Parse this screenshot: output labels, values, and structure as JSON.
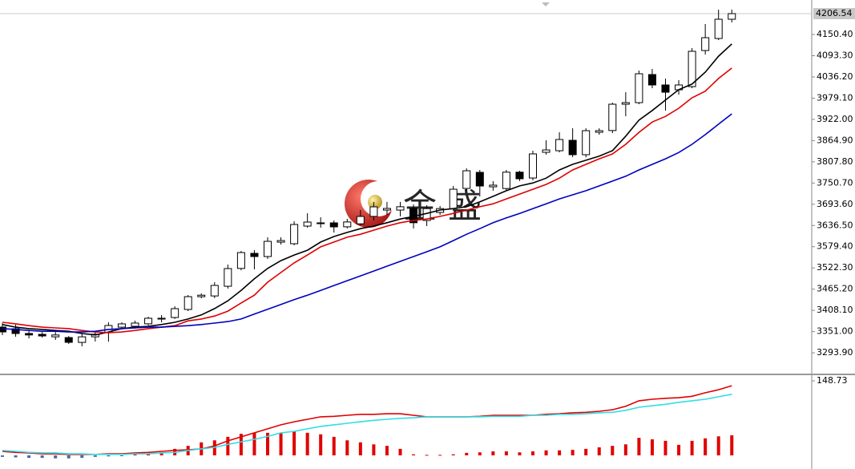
{
  "chart_data": [
    {
      "type": "candlestick",
      "watermark": "金盛",
      "categories": [
        null,
        null,
        null,
        null,
        null,
        null,
        null,
        null,
        null,
        null,
        null,
        null,
        null,
        null,
        null,
        null,
        null,
        null,
        null,
        null,
        null,
        null,
        null,
        null,
        null,
        null,
        null,
        null,
        null,
        null,
        null,
        null,
        null,
        null,
        null,
        null,
        null,
        null,
        null,
        null,
        null,
        null,
        null,
        null,
        null,
        null,
        null,
        null,
        null,
        null,
        null,
        null,
        null,
        null,
        null,
        null
      ],
      "open": [
        3363.1,
        3358.8,
        3346,
        3343.7,
        3337,
        3335,
        3322,
        3337,
        3348,
        3363,
        3365.3,
        3372,
        3384.7,
        3389,
        3410.6,
        3445,
        3447,
        3473,
        3521,
        3561.6,
        3553,
        3591.7,
        3587.5,
        3634.9,
        3641.4,
        3643.6,
        3633,
        3641,
        3661,
        3678,
        3678,
        3682.4,
        3650,
        3671.6,
        3682,
        3736.3,
        3779.5,
        3740.6,
        3736,
        3780,
        3764.3,
        3833.4,
        3837.7,
        3865.7,
        3827,
        3887.3,
        3892,
        3962.8,
        3967,
        4042.6,
        4014.6,
        4001.6,
        4010.2,
        4107.3,
        4139.7,
        4191.4
      ],
      "high": [
        3373.9,
        3369.6,
        3354.5,
        3350,
        3355,
        3339,
        3346,
        3350,
        3376.1,
        3376,
        3380.4,
        3391.2,
        3395.5,
        3419.2,
        3449.4,
        3453.7,
        3483.9,
        3531.4,
        3568,
        3570.2,
        3604.7,
        3604.7,
        3647.9,
        3669.4,
        3658.6,
        3650,
        3654.3,
        3678.1,
        3699.6,
        3700,
        3700,
        3693.2,
        3691,
        3689,
        3742.8,
        3790.2,
        3786,
        3755.7,
        3786,
        3783.8,
        3837.7,
        3865.7,
        3887.3,
        3898.1,
        3898,
        3898,
        3967.1,
        3995.1,
        4053.4,
        4057.7,
        4031.8,
        4027.5,
        4113.8,
        4178.5,
        4217.3,
        4217.3
      ],
      "low": [
        3341.6,
        3337.3,
        3332.9,
        3335.1,
        3328.6,
        3317.8,
        3311.4,
        3324.3,
        3324,
        3359,
        3359,
        3367.5,
        3376,
        3385,
        3406.3,
        3440.8,
        3441,
        3466.7,
        3516,
        3518.5,
        3546.5,
        3585.3,
        3583.2,
        3630.6,
        3630.6,
        3617.7,
        3628.5,
        3637,
        3650,
        3665,
        3661,
        3628.5,
        3635,
        3665,
        3676,
        3729.8,
        3714.7,
        3730,
        3730,
        3756,
        3758,
        3827,
        3833.4,
        3820.4,
        3820,
        3880.8,
        3885,
        3930.4,
        3962.8,
        4005.9,
        3945.5,
        3988.7,
        4005.9,
        4096.5,
        4135.4,
        4182.8
      ],
      "close": [
        3350.2,
        3345.9,
        3342,
        3339.4,
        3342,
        3322.2,
        3337,
        3344,
        3367.5,
        3371.8,
        3374,
        3386.9,
        3387,
        3412.8,
        3445.1,
        3449,
        3475.3,
        3520.6,
        3563.7,
        3553,
        3593.9,
        3596,
        3639.2,
        3645.7,
        3643.6,
        3632.8,
        3646,
        3660.8,
        3686.7,
        3682.4,
        3687,
        3644,
        3682,
        3682,
        3734.1,
        3783.8,
        3742.8,
        3745,
        3780,
        3762.2,
        3829.1,
        3839.8,
        3867.9,
        3827,
        3891.6,
        3891.6,
        3962.8,
        3967.1,
        4044.8,
        4014.6,
        3995.1,
        4014.6,
        4105.2,
        4141.8,
        4191.4,
        4206.54
      ],
      "up_color": "#ffffff",
      "down_color": "#000000",
      "series": [
        {
          "type": "line",
          "color": "#000000",
          "values": [
            3370,
            3363,
            3359,
            3357,
            3354,
            3352,
            3346,
            3342,
            3350,
            3359,
            3363,
            3365,
            3370,
            3376,
            3385,
            3396,
            3413,
            3434,
            3462,
            3493,
            3521,
            3542,
            3557,
            3570,
            3592,
            3607,
            3618,
            3628,
            3635,
            3644,
            3654,
            3661,
            3669,
            3678,
            3682,
            3687,
            3700,
            3715,
            3730,
            3743,
            3751,
            3764,
            3786,
            3801,
            3812,
            3823,
            3838,
            3877,
            3920,
            3946,
            3974,
            4002,
            4017,
            4049,
            4092,
            4125
          ]
        },
        {
          "type": "line",
          "color": "#e00000",
          "values": [
            3376,
            3372,
            3367,
            3363,
            3361,
            3359,
            3354,
            3350,
            3348,
            3350,
            3354,
            3359,
            3363,
            3367,
            3380,
            3385,
            3393,
            3406,
            3428,
            3449,
            3484,
            3510,
            3536,
            3557,
            3579,
            3592,
            3605,
            3613,
            3624,
            3635,
            3644,
            3650,
            3654,
            3661,
            3669,
            3678,
            3687,
            3695,
            3708,
            3721,
            3734,
            3747,
            3764,
            3786,
            3801,
            3816,
            3829,
            3855,
            3887,
            3915,
            3930,
            3952,
            3980,
            3998,
            4032,
            4060
          ]
        },
        {
          "type": "line",
          "color": "#0000c0",
          "values": [
            3359,
            3357,
            3354,
            3352,
            3352,
            3350,
            3350,
            3352,
            3357,
            3359,
            3361,
            3363,
            3363,
            3365,
            3367,
            3370,
            3374,
            3378,
            3385,
            3398,
            3411,
            3424,
            3437,
            3449,
            3462,
            3475,
            3488,
            3501,
            3514,
            3527,
            3540,
            3553,
            3566,
            3579,
            3596,
            3613,
            3628,
            3644,
            3657,
            3669,
            3682,
            3695,
            3708,
            3719,
            3730,
            3743,
            3756,
            3769,
            3786,
            3801,
            3816,
            3833,
            3855,
            3881,
            3909,
            3937
          ]
        }
      ],
      "ylim": [
        3235.9,
        4243.2
      ],
      "yticks": [
        {
          "value": 4150.4,
          "label": "4150.40"
        },
        {
          "value": 4093.3,
          "label": "4093.30"
        },
        {
          "value": 4036.2,
          "label": "4036.20"
        },
        {
          "value": 3979.1,
          "label": "3979.10"
        },
        {
          "value": 3922,
          "label": "3922.00"
        },
        {
          "value": 3864.9,
          "label": "3864.90"
        },
        {
          "value": 3807.8,
          "label": "3807.80"
        },
        {
          "value": 3750.7,
          "label": "3750.70"
        },
        {
          "value": 3693.6,
          "label": "3693.60"
        },
        {
          "value": 3636.5,
          "label": "3636.50"
        },
        {
          "value": 3579.4,
          "label": "3579.40"
        },
        {
          "value": 3522.3,
          "label": "3522.30"
        },
        {
          "value": 3465.2,
          "label": "3465.20"
        },
        {
          "value": 3408.1,
          "label": "3408.10"
        },
        {
          "value": 3351,
          "label": "3351.00"
        },
        {
          "value": 3293.9,
          "label": "3293.90"
        }
      ],
      "last_price": 4206.54
    },
    {
      "type": "macd",
      "categories": [
        null,
        null,
        null,
        null,
        null,
        null,
        null,
        null,
        null,
        null,
        null,
        null,
        null,
        null,
        null,
        null,
        null,
        null,
        null,
        null,
        null,
        null,
        null,
        null,
        null,
        null,
        null,
        null,
        null,
        null,
        null,
        null,
        null,
        null,
        null,
        null,
        null,
        null,
        null,
        null,
        null,
        null,
        null,
        null,
        null,
        null,
        null,
        null,
        null,
        null,
        null,
        null,
        null,
        null,
        null,
        null
      ],
      "series": [
        {
          "type": "bar",
          "color": "#e00000",
          "negative_color": "#4a6aa0",
          "values": [
            -3,
            -4,
            -5,
            -5,
            -6,
            -6,
            -5,
            -3,
            -2,
            -1,
            2,
            3,
            6,
            13,
            19,
            26,
            30,
            37,
            43,
            45,
            45,
            45,
            48,
            45,
            42,
            37,
            30,
            26,
            22,
            19,
            13,
            2,
            1,
            1,
            2,
            5,
            6,
            8,
            8,
            6,
            8,
            10,
            10,
            11,
            13,
            16,
            19,
            22,
            35,
            32,
            29,
            21,
            29,
            34,
            38,
            40
          ]
        },
        {
          "type": "line",
          "color": "#e00000",
          "values": [
            8,
            6,
            5,
            3,
            3,
            2,
            2,
            2,
            3,
            3,
            5,
            6,
            8,
            10,
            11,
            13,
            19,
            29,
            37,
            45,
            53,
            61,
            67,
            72,
            77,
            78,
            80,
            82,
            82,
            83,
            83,
            80,
            77,
            77,
            77,
            77,
            78,
            80,
            80,
            80,
            80,
            82,
            83,
            85,
            86,
            88,
            91,
            98,
            109,
            112,
            114,
            115,
            118,
            125,
            131,
            139
          ]
        },
        {
          "type": "line",
          "color": "#33dde6",
          "values": [
            10,
            8,
            6,
            5,
            5,
            3,
            3,
            2,
            2,
            2,
            3,
            3,
            5,
            6,
            10,
            13,
            16,
            22,
            27,
            32,
            38,
            45,
            48,
            53,
            58,
            61,
            64,
            67,
            70,
            72,
            74,
            75,
            77,
            77,
            77,
            77,
            77,
            78,
            78,
            78,
            80,
            80,
            82,
            82,
            83,
            85,
            86,
            90,
            96,
            99,
            102,
            106,
            109,
            112,
            117,
            122
          ]
        }
      ],
      "ylim": [
        -27.2,
        160
      ],
      "yticks": [
        148.73
      ]
    }
  ]
}
